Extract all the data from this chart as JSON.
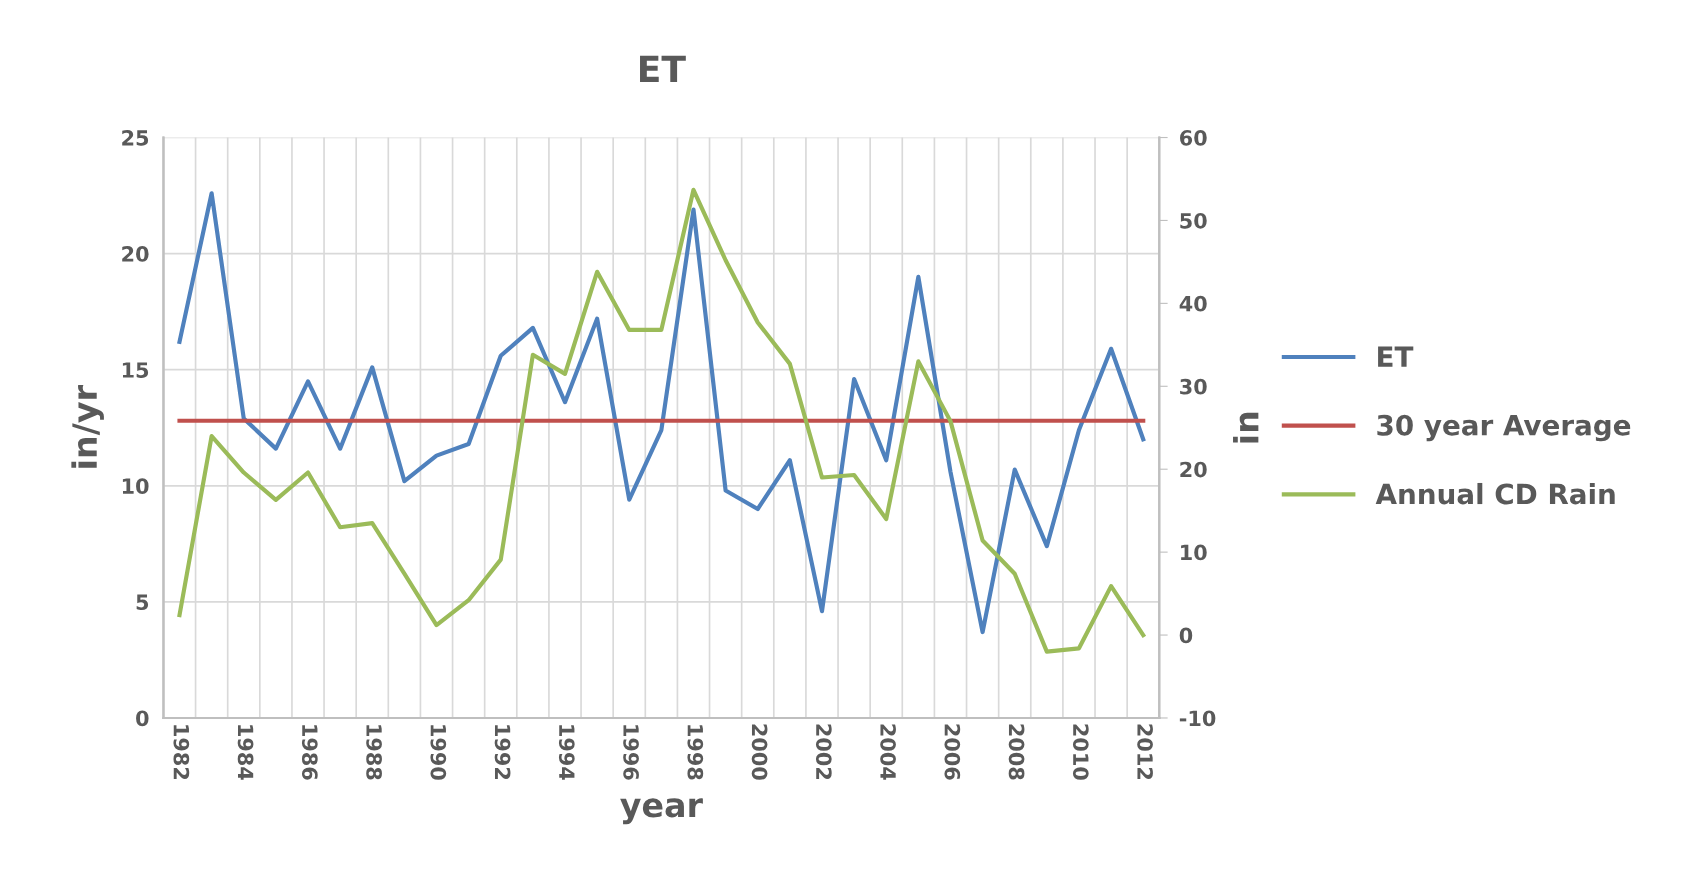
{
  "chart_data": {
    "type": "line",
    "title": "ET",
    "xlabel": "year",
    "ylabel": "in/yr",
    "y2label": "in",
    "categories": [
      "1982",
      null,
      "1984",
      null,
      "1986",
      null,
      "1988",
      null,
      "1990",
      null,
      "1992",
      null,
      "1994",
      null,
      "1996",
      null,
      "1998",
      null,
      "2000",
      null,
      "2002",
      null,
      "2004",
      null,
      "2006",
      null,
      "2008",
      null,
      "2010",
      null,
      "2012"
    ],
    "series": [
      {
        "name": "ET",
        "color": "#4f81bd",
        "values": [
          16.2,
          22.6,
          12.9,
          11.6,
          14.5,
          11.6,
          15.1,
          10.2,
          11.3,
          11.8,
          15.6,
          16.8,
          13.6,
          17.2,
          9.4,
          12.4,
          21.9,
          9.8,
          9.0,
          11.1,
          4.6,
          14.6,
          11.1,
          19.0,
          10.6,
          3.7,
          10.7,
          7.4,
          12.4,
          15.9,
          12.0
        ]
      },
      {
        "name": "30 year Average",
        "color": "#c0504d",
        "values": [
          12.8,
          12.8,
          12.8,
          12.8,
          12.8,
          12.8,
          12.8,
          12.8,
          12.8,
          12.8,
          12.8,
          12.8,
          12.8,
          12.8,
          12.8,
          12.8,
          12.8,
          12.8,
          12.8,
          12.8,
          12.8,
          12.8,
          12.8,
          12.8,
          12.8,
          12.8,
          12.8,
          12.8,
          12.8,
          12.8,
          12.8
        ]
      },
      {
        "name": "Annual CD Rain",
        "color": "#9bbb59",
        "axis": "y2",
        "values": [
          2.4,
          24.0,
          19.6,
          16.3,
          19.6,
          13.0,
          13.5,
          7.4,
          1.2,
          4.2,
          9.1,
          33.8,
          31.5,
          43.8,
          36.8,
          36.8,
          53.7,
          45.2,
          37.7,
          32.7,
          19.0,
          19.3,
          14.0,
          33.0,
          25.8,
          11.4,
          7.4,
          -2.0,
          -1.6,
          5.9,
          0.0
        ]
      }
    ],
    "ylim": [
      0,
      25
    ],
    "yticks": [
      0,
      5,
      10,
      15,
      20,
      25
    ],
    "y2lim": [
      -10,
      60
    ],
    "y2ticks": [
      -10,
      0,
      10,
      20,
      30,
      40,
      50,
      60
    ],
    "grid": true,
    "legend": "right",
    "marker": "none",
    "line_style": "solid"
  }
}
